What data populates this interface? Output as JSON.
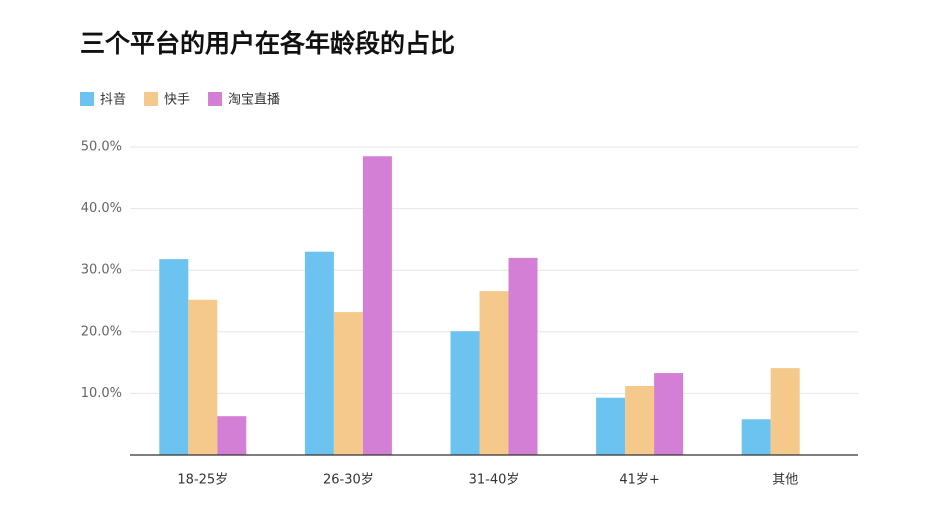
{
  "chart_data": {
    "type": "bar",
    "title": "三个平台的用户在各年龄段的占比",
    "categories": [
      "18-25岁",
      "26-30岁",
      "31-40岁",
      "41岁+",
      "其他"
    ],
    "series": [
      {
        "name": "抖音",
        "color": "#6dc3f0",
        "values": [
          31.8,
          33.0,
          20.1,
          9.3,
          5.8
        ]
      },
      {
        "name": "快手",
        "color": "#f5c98b",
        "values": [
          25.2,
          23.2,
          26.6,
          11.2,
          14.1
        ]
      },
      {
        "name": "淘宝直播",
        "color": "#d47fd6",
        "values": [
          6.3,
          48.5,
          32.0,
          13.3,
          null
        ]
      }
    ],
    "ylim": [
      0,
      50
    ],
    "yticks": [
      {
        "value": 10,
        "label": "10.0%"
      },
      {
        "value": 20,
        "label": "20.0%"
      },
      {
        "value": 30,
        "label": "30.0%"
      },
      {
        "value": 40,
        "label": "40.0%"
      },
      {
        "value": 50,
        "label": "50.0%"
      }
    ],
    "grid": true
  }
}
